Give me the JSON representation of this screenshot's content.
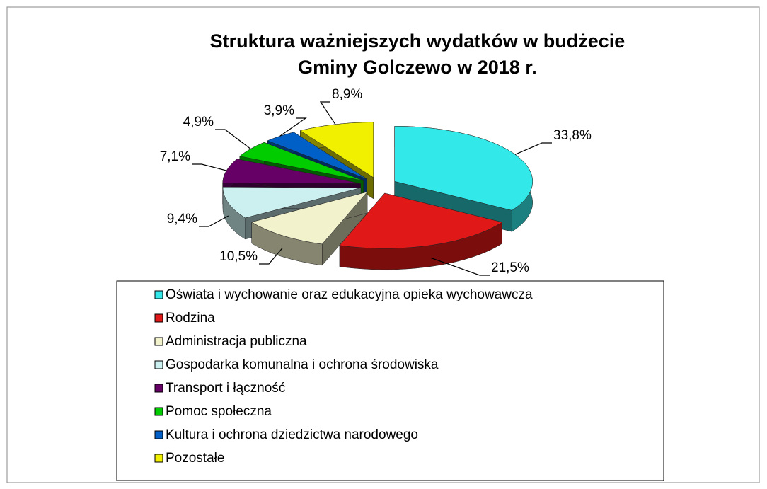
{
  "chart_data": {
    "type": "pie",
    "title": [
      "Struktura ważniejszych wydatków w budżecie",
      "Gminy Golczewo w 2018 r."
    ],
    "categories": [
      "Oświata i wychowanie oraz edukacyjna opieka wychowawcza",
      "Rodzina",
      "Administracja publiczna",
      "Gospodarka komunalna i ochrona środowiska",
      "Transport i łączność",
      "Pomoc społeczna",
      "Kultura i ochrona dziedzictwa narodowego",
      "Pozostałe"
    ],
    "values": [
      33.8,
      21.5,
      10.5,
      9.4,
      7.1,
      4.9,
      3.9,
      8.9
    ],
    "value_labels": [
      "33,8%",
      "21,5%",
      "10,5%",
      "9,4%",
      "7,1%",
      "4,9%",
      "3,9%",
      "8,9%"
    ],
    "colors": [
      "#33e8e8",
      "#e01818",
      "#f2f2cc",
      "#ccf0f0",
      "#660066",
      "#00cc00",
      "#0060c8",
      "#f0f000"
    ]
  }
}
